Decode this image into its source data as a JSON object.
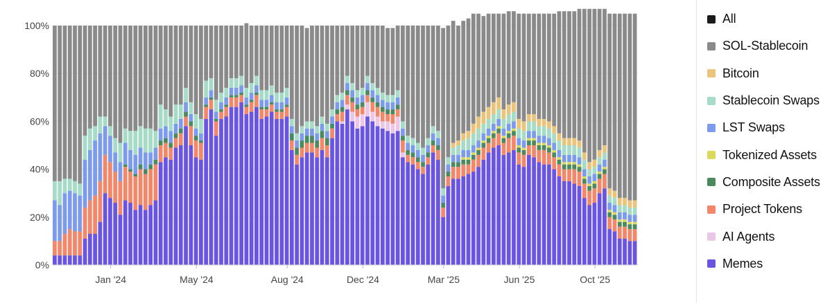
{
  "chart_data": {
    "type": "bar",
    "stacked": true,
    "ylim": [
      0,
      100
    ],
    "yticks": [
      "0%",
      "20%",
      "40%",
      "60%",
      "80%",
      "100%"
    ],
    "ytick_values": [
      0,
      20,
      40,
      60,
      80,
      100
    ],
    "xticks": [
      {
        "label": "Jan '24",
        "position": 11.5
      },
      {
        "label": "May '24",
        "position": 28.5
      },
      {
        "label": "Aug '24",
        "position": 46.5
      },
      {
        "label": "Dec '24",
        "position": 61.5
      },
      {
        "label": "Mar '25",
        "position": 77.5
      },
      {
        "label": "Jun '25",
        "position": 92.5
      },
      {
        "label": "Oct '25",
        "position": 107.5
      }
    ],
    "grid": true,
    "legend_position": "right",
    "series": [
      {
        "name": "Memes",
        "color": "#6a55e3",
        "values": [
          4,
          4,
          4,
          4,
          4,
          4,
          11,
          13,
          13,
          18,
          30,
          28,
          26,
          21,
          27,
          26,
          23,
          25,
          23,
          25,
          27,
          43,
          45,
          44,
          49,
          50,
          58,
          50,
          45,
          44,
          61,
          65,
          54,
          61,
          62,
          66,
          66,
          68,
          63,
          64,
          66,
          61,
          62,
          64,
          61,
          61,
          62,
          48,
          42,
          45,
          47,
          47,
          45,
          48,
          45,
          53,
          60,
          59,
          65,
          60,
          57,
          58,
          62,
          60,
          58,
          57,
          56,
          55,
          56,
          45,
          43,
          42,
          40,
          38,
          42,
          47,
          44,
          20,
          33,
          36,
          36,
          37,
          38,
          39,
          41,
          44,
          47,
          49,
          50,
          46,
          47,
          48,
          42,
          41,
          46,
          45,
          43,
          42,
          42,
          40,
          37,
          35,
          35,
          34,
          33,
          28,
          25,
          26,
          30,
          32,
          15,
          14,
          11,
          11,
          10,
          10
        ]
      },
      {
        "name": "AI Agents",
        "color": "#ecc6e6",
        "values": [
          0,
          0,
          0,
          0,
          0,
          0,
          0,
          0,
          0,
          0,
          0,
          0,
          0,
          0,
          0,
          0,
          0,
          0,
          0,
          0,
          0,
          0,
          0,
          0,
          0,
          0,
          0,
          0,
          0,
          0,
          0,
          0,
          0,
          0,
          0,
          0,
          0,
          0,
          0,
          0,
          0,
          0,
          0,
          0,
          0,
          0,
          0,
          0,
          0,
          0,
          0,
          0,
          0,
          0,
          0,
          0,
          0,
          1,
          2,
          4,
          5,
          5,
          6,
          4,
          4,
          3,
          4,
          4,
          6,
          2,
          0,
          0,
          0,
          0,
          0,
          0,
          0,
          0,
          0,
          0,
          0,
          0,
          0,
          0,
          0,
          0,
          0,
          0,
          0,
          0,
          0,
          0,
          0,
          0,
          0,
          0,
          0,
          0,
          0,
          0,
          0,
          0,
          0,
          0,
          0,
          0,
          0,
          0,
          0,
          0,
          0,
          0,
          0,
          0,
          0,
          0
        ]
      },
      {
        "name": "Project Tokens",
        "color": "#f2876a",
        "values": [
          6,
          6,
          9,
          11,
          10,
          10,
          13,
          14,
          16,
          17,
          16,
          15,
          13,
          14,
          14,
          13,
          14,
          15,
          15,
          15,
          15,
          7,
          6,
          5,
          4,
          5,
          4,
          8,
          7,
          7,
          5,
          4,
          6,
          3,
          4,
          4,
          4,
          3,
          3,
          4,
          5,
          4,
          3,
          3,
          3,
          3,
          4,
          4,
          4,
          4,
          4,
          4,
          4,
          5,
          5,
          4,
          3,
          4,
          4,
          4,
          3,
          3,
          3,
          4,
          4,
          4,
          3,
          4,
          3,
          5,
          3,
          3,
          3,
          3,
          3,
          3,
          4,
          4,
          4,
          5,
          5,
          5,
          4,
          5,
          5,
          5,
          4,
          4,
          5,
          5,
          6,
          6,
          5,
          5,
          4,
          5,
          5,
          6,
          5,
          5,
          5,
          5,
          5,
          6,
          6,
          6,
          6,
          6,
          6,
          6,
          5,
          5,
          5,
          5,
          5,
          5
        ]
      },
      {
        "name": "Composite Assets",
        "color": "#4a8a5e",
        "values": [
          0,
          0,
          0,
          0,
          0,
          0,
          0,
          0,
          0,
          0,
          0,
          0,
          0,
          0,
          1,
          1,
          1,
          2,
          2,
          2,
          2,
          2,
          2,
          2,
          2,
          2,
          2,
          2,
          2,
          1,
          1,
          1,
          1,
          1,
          1,
          1,
          1,
          1,
          1,
          1,
          1,
          1,
          1,
          1,
          1,
          1,
          1,
          3,
          3,
          3,
          3,
          3,
          3,
          3,
          3,
          2,
          2,
          2,
          2,
          2,
          2,
          2,
          2,
          2,
          2,
          2,
          2,
          2,
          2,
          2,
          2,
          2,
          2,
          2,
          2,
          2,
          2,
          2,
          2,
          2,
          2,
          2,
          2,
          2,
          2,
          2,
          2,
          2,
          2,
          2,
          2,
          2,
          2,
          2,
          2,
          2,
          2,
          2,
          2,
          2,
          2,
          2,
          2,
          2,
          2,
          2,
          2,
          2,
          2,
          2,
          2,
          2,
          2,
          2,
          2,
          2
        ]
      },
      {
        "name": "Tokenized Assets",
        "color": "#dcd95a",
        "values": [
          0,
          0,
          0,
          0,
          0,
          0,
          0,
          0,
          0,
          0,
          0,
          0,
          0,
          0,
          0,
          0,
          0,
          0,
          0,
          0,
          0,
          0,
          0,
          0,
          0,
          0,
          0,
          0,
          0,
          0,
          0,
          0,
          0,
          0,
          0,
          0,
          0,
          0,
          0,
          0,
          0,
          0,
          0,
          0,
          0,
          0,
          0,
          0,
          0,
          0,
          0,
          0,
          0,
          0,
          0,
          0,
          0,
          0,
          0,
          0,
          0,
          0,
          0,
          0,
          0,
          0,
          0,
          0,
          0,
          0,
          0,
          0,
          0,
          0,
          0,
          0,
          0,
          0,
          0,
          0,
          0,
          1,
          1,
          1,
          1,
          1,
          1,
          1,
          1,
          1,
          1,
          1,
          1,
          1,
          1,
          1,
          1,
          1,
          1,
          1,
          1,
          1,
          1,
          1,
          1,
          1,
          1,
          1,
          1,
          1,
          1,
          1,
          1,
          1,
          1,
          1
        ]
      },
      {
        "name": "LST Swaps",
        "color": "#7d9bec",
        "values": [
          17,
          15,
          17,
          16,
          16,
          15,
          20,
          21,
          23,
          20,
          12,
          11,
          8,
          8,
          9,
          8,
          8,
          7,
          7,
          5,
          5,
          5,
          5,
          5,
          4,
          4,
          4,
          3,
          3,
          3,
          3,
          3,
          3,
          3,
          3,
          3,
          3,
          3,
          3,
          3,
          3,
          3,
          3,
          3,
          3,
          3,
          3,
          3,
          3,
          3,
          3,
          3,
          3,
          3,
          3,
          3,
          3,
          3,
          3,
          3,
          3,
          3,
          3,
          3,
          3,
          3,
          3,
          3,
          3,
          3,
          3,
          3,
          3,
          3,
          3,
          3,
          3,
          3,
          3,
          3,
          3,
          3,
          3,
          3,
          3,
          3,
          3,
          3,
          3,
          3,
          3,
          3,
          3,
          3,
          3,
          3,
          3,
          3,
          3,
          3,
          3,
          3,
          3,
          3,
          3,
          3,
          3,
          3,
          3,
          3,
          3,
          3,
          3,
          3,
          3,
          3
        ]
      },
      {
        "name": "Stablecoin Swaps",
        "color": "#a5dbc7",
        "values": [
          8,
          10,
          6,
          5,
          5,
          5,
          10,
          9,
          6,
          7,
          4,
          4,
          6,
          8,
          6,
          8,
          10,
          9,
          10,
          10,
          7,
          10,
          7,
          6,
          8,
          6,
          6,
          5,
          6,
          6,
          7,
          5,
          5,
          4,
          4,
          4,
          4,
          4,
          4,
          4,
          4,
          4,
          4,
          4,
          4,
          4,
          4,
          3,
          3,
          3,
          3,
          3,
          3,
          3,
          3,
          3,
          3,
          3,
          3,
          3,
          3,
          3,
          3,
          3,
          3,
          3,
          3,
          3,
          3,
          3,
          3,
          3,
          3,
          3,
          3,
          3,
          3,
          3,
          3,
          3,
          4,
          4,
          5,
          5,
          5,
          4,
          4,
          4,
          4,
          4,
          4,
          4,
          4,
          4,
          4,
          4,
          4,
          4,
          4,
          4,
          4,
          4,
          4,
          4,
          4,
          4,
          3,
          3,
          3,
          3,
          3,
          3,
          3,
          3,
          3,
          3
        ]
      },
      {
        "name": "Bitcoin",
        "color": "#ecc37a",
        "values": [
          0,
          0,
          0,
          0,
          0,
          0,
          0,
          0,
          0,
          0,
          0,
          0,
          0,
          0,
          0,
          0,
          0,
          0,
          0,
          0,
          0,
          0,
          0,
          0,
          0,
          0,
          0,
          0,
          0,
          0,
          0,
          0,
          0,
          0,
          0,
          0,
          0,
          0,
          0,
          0,
          0,
          0,
          0,
          0,
          0,
          0,
          0,
          0,
          0,
          0,
          0,
          0,
          0,
          0,
          0,
          0,
          0,
          0,
          0,
          0,
          0,
          0,
          0,
          0,
          0,
          0,
          0,
          0,
          0,
          0,
          0,
          0,
          0,
          0,
          0,
          0,
          0,
          0,
          0,
          2,
          2,
          3,
          3,
          4,
          5,
          5,
          5,
          5,
          5,
          4,
          4,
          4,
          4,
          4,
          3,
          3,
          3,
          3,
          3,
          3,
          3,
          3,
          3,
          3,
          3,
          3,
          3,
          3,
          3,
          3,
          3,
          3,
          3,
          3,
          3,
          3
        ]
      },
      {
        "name": "SOL-Stablecoin",
        "color": "#8a8a8a",
        "values": [
          65,
          65,
          64,
          64,
          65,
          66,
          46,
          43,
          42,
          38,
          38,
          42,
          47,
          49,
          43,
          44,
          44,
          42,
          43,
          43,
          44,
          33,
          35,
          38,
          33,
          33,
          26,
          32,
          37,
          39,
          23,
          22,
          31,
          28,
          26,
          22,
          22,
          21,
          27,
          24,
          21,
          27,
          27,
          25,
          28,
          28,
          26,
          39,
          45,
          42,
          39,
          40,
          42,
          38,
          41,
          35,
          29,
          28,
          21,
          24,
          27,
          26,
          21,
          24,
          26,
          28,
          28,
          28,
          27,
          40,
          46,
          47,
          49,
          51,
          47,
          42,
          44,
          67,
          55,
          51,
          48,
          47,
          47,
          46,
          43,
          40,
          39,
          37,
          35,
          40,
          39,
          38,
          44,
          45,
          42,
          42,
          44,
          44,
          45,
          47,
          51,
          53,
          53,
          53,
          55,
          60,
          64,
          63,
          59,
          57,
          73,
          74,
          77,
          77,
          78,
          78
        ]
      }
    ]
  },
  "legend": {
    "items": [
      {
        "label": "All",
        "color": "#1a1a1a"
      },
      {
        "label": "SOL-Stablecoin",
        "color": "#8a8a8a"
      },
      {
        "label": "Bitcoin",
        "color": "#ecc37a"
      },
      {
        "label": "Stablecoin Swaps",
        "color": "#a5dbc7"
      },
      {
        "label": "LST Swaps",
        "color": "#7d9bec"
      },
      {
        "label": "Tokenized Assets",
        "color": "#dcd95a"
      },
      {
        "label": "Composite Assets",
        "color": "#4a8a5e"
      },
      {
        "label": "Project Tokens",
        "color": "#f2876a"
      },
      {
        "label": "AI Agents",
        "color": "#ecc6e6"
      },
      {
        "label": "Memes",
        "color": "#6a55e3"
      }
    ]
  }
}
